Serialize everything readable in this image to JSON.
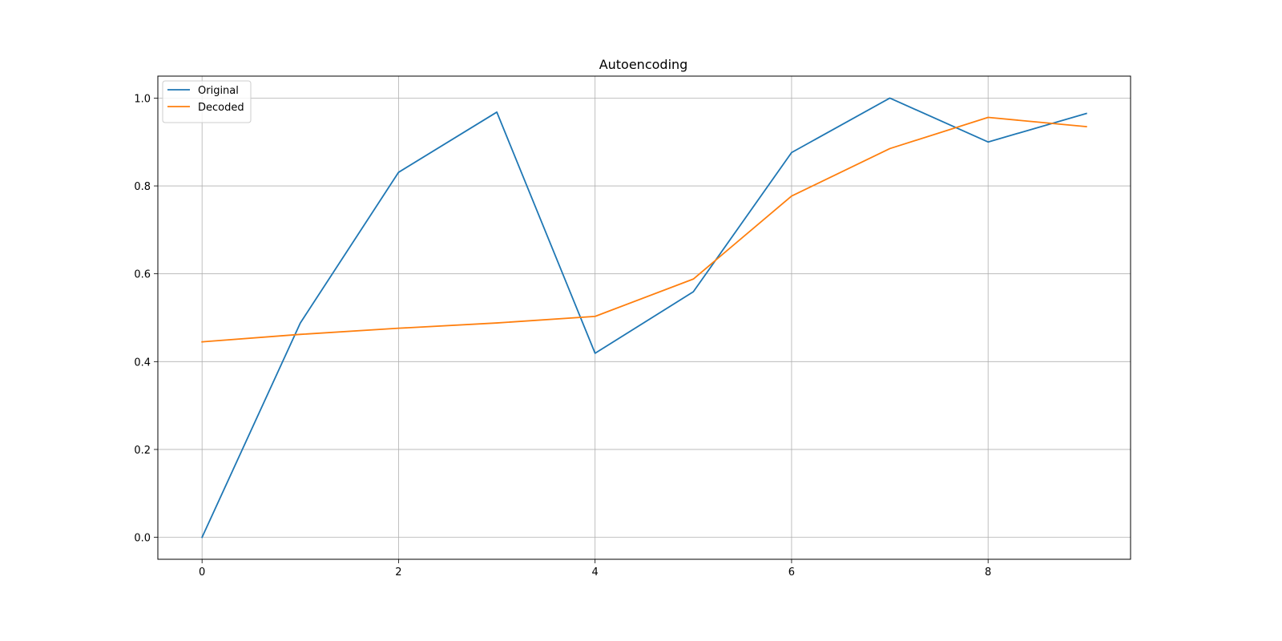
{
  "chart_data": {
    "type": "line",
    "title": "Autoencoding",
    "xlabel": "",
    "ylabel": "",
    "x": [
      0,
      1,
      2,
      3,
      4,
      5,
      6,
      7,
      8,
      9
    ],
    "xlim": [
      -0.45,
      9.45
    ],
    "ylim": [
      -0.05,
      1.05
    ],
    "xticks": [
      0,
      2,
      4,
      6,
      8
    ],
    "xtick_labels": [
      "0",
      "2",
      "4",
      "6",
      "8"
    ],
    "yticks": [
      0.0,
      0.2,
      0.4,
      0.6,
      0.8,
      1.0
    ],
    "ytick_labels": [
      "0.0",
      "0.2",
      "0.4",
      "0.6",
      "0.8",
      "1.0"
    ],
    "grid": true,
    "legend_position": "top-left",
    "series": [
      {
        "name": "Original",
        "color": "#1f77b4",
        "values": [
          0.0,
          0.488,
          0.831,
          0.968,
          0.419,
          0.559,
          0.876,
          1.0,
          0.9,
          0.965
        ]
      },
      {
        "name": "Decoded",
        "color": "#ff7f0e",
        "values": [
          0.445,
          0.462,
          0.476,
          0.488,
          0.503,
          0.588,
          0.777,
          0.885,
          0.956,
          0.935
        ]
      }
    ]
  }
}
